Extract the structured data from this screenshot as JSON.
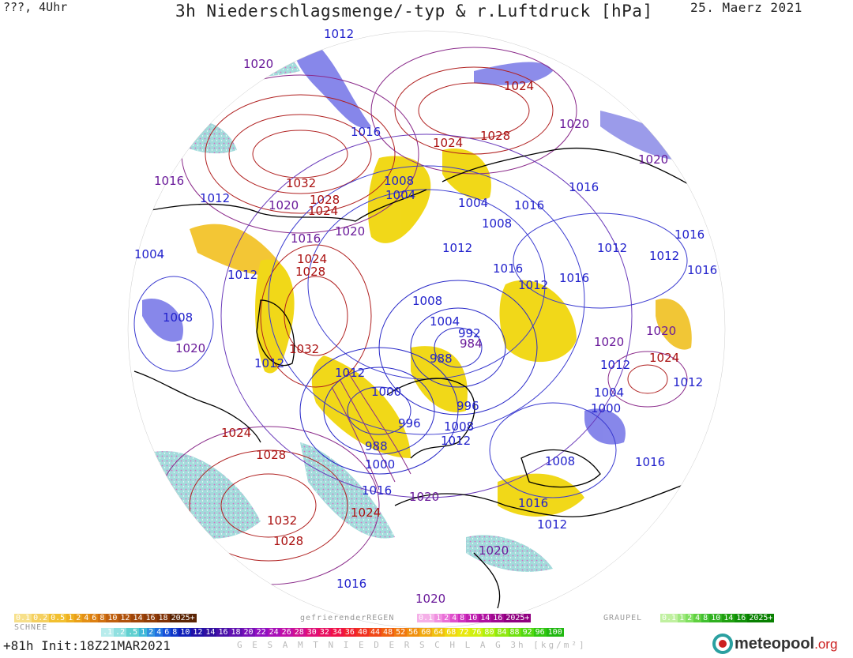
{
  "header": {
    "left": "???, 4Uhr",
    "title": "3h Niederschlagsmenge/-typ & r.Luftdruck [hPa]",
    "date": "25. Maerz 2021"
  },
  "colors": {
    "high": "#aa1010",
    "low": "#2222cc",
    "mid": "#6a1a9a",
    "rain": "#f0d000",
    "snow_blue": "#7070e0",
    "freezing": "#e050c0",
    "cyan": "#70d8d0"
  },
  "pressure_labels": [
    {
      "text": "1012",
      "kind": "low"
    },
    {
      "text": "1020",
      "kind": "mid"
    },
    {
      "text": "1016",
      "kind": "low"
    },
    {
      "text": "1024",
      "kind": "high"
    },
    {
      "text": "1028",
      "kind": "high"
    },
    {
      "text": "1020",
      "kind": "mid"
    },
    {
      "text": "1024",
      "kind": "high"
    },
    {
      "text": "1020",
      "kind": "mid"
    },
    {
      "text": "1016",
      "kind": "mid"
    },
    {
      "text": "1012",
      "kind": "low"
    },
    {
      "text": "1032",
      "kind": "high"
    },
    {
      "text": "1028",
      "kind": "high"
    },
    {
      "text": "1024",
      "kind": "high"
    },
    {
      "text": "1020",
      "kind": "mid"
    },
    {
      "text": "1020",
      "kind": "mid"
    },
    {
      "text": "1008",
      "kind": "low"
    },
    {
      "text": "1004",
      "kind": "low"
    },
    {
      "text": "1004",
      "kind": "low"
    },
    {
      "text": "1016",
      "kind": "low"
    },
    {
      "text": "1016",
      "kind": "low"
    },
    {
      "text": "1008",
      "kind": "low"
    },
    {
      "text": "1016",
      "kind": "mid"
    },
    {
      "text": "1012",
      "kind": "low"
    },
    {
      "text": "1004",
      "kind": "low"
    },
    {
      "text": "1024",
      "kind": "high"
    },
    {
      "text": "1028",
      "kind": "high"
    },
    {
      "text": "1012",
      "kind": "low"
    },
    {
      "text": "1016",
      "kind": "low"
    },
    {
      "text": "1016",
      "kind": "low"
    },
    {
      "text": "1012",
      "kind": "low"
    },
    {
      "text": "1012",
      "kind": "low"
    },
    {
      "text": "1016",
      "kind": "low"
    },
    {
      "text": "1012",
      "kind": "low"
    },
    {
      "text": "1016",
      "kind": "low"
    },
    {
      "text": "1008",
      "kind": "low"
    },
    {
      "text": "1008",
      "kind": "low"
    },
    {
      "text": "1004",
      "kind": "low"
    },
    {
      "text": "992",
      "kind": "low"
    },
    {
      "text": "984",
      "kind": "mid"
    },
    {
      "text": "1032",
      "kind": "high"
    },
    {
      "text": "1020",
      "kind": "mid"
    },
    {
      "text": "1012",
      "kind": "low"
    },
    {
      "text": "1012",
      "kind": "low"
    },
    {
      "text": "988",
      "kind": "low"
    },
    {
      "text": "1000",
      "kind": "low"
    },
    {
      "text": "1020",
      "kind": "mid"
    },
    {
      "text": "1020",
      "kind": "mid"
    },
    {
      "text": "1024",
      "kind": "high"
    },
    {
      "text": "1012",
      "kind": "low"
    },
    {
      "text": "1012",
      "kind": "low"
    },
    {
      "text": "996",
      "kind": "low"
    },
    {
      "text": "1004",
      "kind": "low"
    },
    {
      "text": "1000",
      "kind": "low"
    },
    {
      "text": "996",
      "kind": "low"
    },
    {
      "text": "1008",
      "kind": "low"
    },
    {
      "text": "1012",
      "kind": "low"
    },
    {
      "text": "1024",
      "kind": "high"
    },
    {
      "text": "1028",
      "kind": "high"
    },
    {
      "text": "988",
      "kind": "low"
    },
    {
      "text": "1000",
      "kind": "low"
    },
    {
      "text": "1008",
      "kind": "low"
    },
    {
      "text": "1016",
      "kind": "low"
    },
    {
      "text": "1016",
      "kind": "low"
    },
    {
      "text": "1020",
      "kind": "mid"
    },
    {
      "text": "1024",
      "kind": "high"
    },
    {
      "text": "1016",
      "kind": "low"
    },
    {
      "text": "1012",
      "kind": "low"
    },
    {
      "text": "1032",
      "kind": "high"
    },
    {
      "text": "1028",
      "kind": "high"
    },
    {
      "text": "1020",
      "kind": "mid"
    },
    {
      "text": "1016",
      "kind": "low"
    },
    {
      "text": "1020",
      "kind": "mid"
    }
  ],
  "legend": {
    "snow": {
      "title": "SCHNEE",
      "items": [
        "0.1",
        "0.2",
        "0.5",
        "1",
        "2",
        "4",
        "6",
        "8",
        "10",
        "12",
        "14",
        "16",
        "18",
        "2025+"
      ],
      "colors": [
        "#f7e08a",
        "#f5d060",
        "#f2c030",
        "#eeb020",
        "#eaa018",
        "#e49015",
        "#dd8012",
        "#d07010",
        "#c0600e",
        "#b0520c",
        "#a0460a",
        "#903c08",
        "#803206",
        "#5a2404"
      ]
    },
    "freezing": {
      "title": "gefrierenderREGEN",
      "items": [
        "0.1",
        "1",
        "2",
        "4",
        "8",
        "10",
        "14",
        "16",
        "2025+"
      ],
      "colors": [
        "#f5b0e8",
        "#f090e0",
        "#ea70d8",
        "#e050cc",
        "#d030c0",
        "#c020b0",
        "#b010a0",
        "#a00890",
        "#900080"
      ]
    },
    "graupel": {
      "title": "GRAUPEL",
      "items": [
        "0.1",
        "1",
        "2",
        "4",
        "8",
        "10",
        "14",
        "16",
        "2025+"
      ],
      "colors": [
        "#c0f0a0",
        "#a0e880",
        "#80e060",
        "#60d040",
        "#40c030",
        "#30b020",
        "#20a010",
        "#109008",
        "#088000"
      ]
    },
    "total": {
      "title": "G E S A M T N I E D E R S C H L A G   3h  [kg/m²]",
      "items": [
        ".1",
        ".2",
        ".5",
        "1",
        "2",
        "4",
        "6",
        "8",
        "10",
        "12",
        "14",
        "16",
        "18",
        "20",
        "22",
        "24",
        "26",
        "28",
        "30",
        "32",
        "34",
        "36",
        "40",
        "44",
        "48",
        "52",
        "56",
        "60",
        "64",
        "68",
        "72",
        "76",
        "80",
        "84",
        "88",
        "92",
        "96",
        "100"
      ]
    }
  },
  "footer": {
    "left": "+81h  Init:18Z21MAR2021",
    "logo": "meteopool",
    "logo_tld": ".org"
  }
}
